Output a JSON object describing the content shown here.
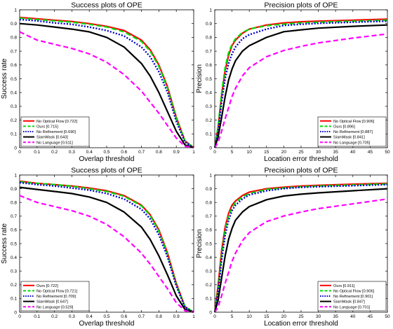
{
  "chart_data": [
    {
      "type": "line",
      "title": "Success plots of OPE",
      "xlabel": "Overlap threshold",
      "ylabel": "Success rate",
      "xlim": [
        0,
        1
      ],
      "ylim": [
        0,
        1
      ],
      "xticks": [
        "0",
        "0.1",
        "0.2",
        "0.3",
        "0.4",
        "0.5",
        "0.6",
        "0.7",
        "0.8",
        "0.9",
        "1"
      ],
      "yticks": [
        "0",
        "0.1",
        "0.2",
        "0.3",
        "0.4",
        "0.5",
        "0.6",
        "0.7",
        "0.8",
        "0.9",
        "1"
      ],
      "legend_position": "bottom-left",
      "grid": false,
      "x": [
        0,
        0.1,
        0.2,
        0.3,
        0.4,
        0.5,
        0.6,
        0.7,
        0.75,
        0.8,
        0.85,
        0.9,
        0.95,
        1
      ],
      "series": [
        {
          "name": "No Optical Flow [0.722]",
          "color": "#ff0000",
          "dash": "solid",
          "values": [
            0.945,
            0.935,
            0.925,
            0.915,
            0.9,
            0.88,
            0.85,
            0.78,
            0.71,
            0.6,
            0.44,
            0.22,
            0.05,
            0.0
          ]
        },
        {
          "name": "Ours [0.715]",
          "color": "#00dd00",
          "dash": "dashed",
          "values": [
            0.94,
            0.93,
            0.92,
            0.91,
            0.895,
            0.875,
            0.84,
            0.77,
            0.7,
            0.59,
            0.43,
            0.21,
            0.05,
            0.0
          ]
        },
        {
          "name": "No Refinement [0.690]",
          "color": "#0000cc",
          "dash": "dotted",
          "values": [
            0.93,
            0.92,
            0.905,
            0.895,
            0.875,
            0.85,
            0.81,
            0.73,
            0.66,
            0.55,
            0.4,
            0.19,
            0.04,
            0.0
          ]
        },
        {
          "name": "SiamMask [0.643]",
          "color": "#000000",
          "dash": "solid",
          "values": [
            0.9,
            0.89,
            0.875,
            0.86,
            0.84,
            0.8,
            0.73,
            0.61,
            0.52,
            0.4,
            0.26,
            0.12,
            0.02,
            0.0
          ]
        },
        {
          "name": "No Language [0.511]",
          "color": "#ff00ff",
          "dash": "dashed",
          "values": [
            0.84,
            0.78,
            0.75,
            0.72,
            0.68,
            0.62,
            0.53,
            0.41,
            0.33,
            0.25,
            0.16,
            0.07,
            0.01,
            0.0
          ]
        }
      ]
    },
    {
      "type": "line",
      "title": "Precision plots of OPE",
      "xlabel": "Location error threshold",
      "ylabel": "Precision",
      "xlim": [
        0,
        50
      ],
      "ylim": [
        0,
        1
      ],
      "xticks": [
        "0",
        "5",
        "10",
        "15",
        "20",
        "25",
        "30",
        "35",
        "40",
        "45",
        "50"
      ],
      "yticks": [
        "0",
        "0.1",
        "0.2",
        "0.3",
        "0.4",
        "0.5",
        "0.6",
        "0.7",
        "0.8",
        "0.9",
        "1"
      ],
      "legend_position": "bottom-right",
      "grid": false,
      "x": [
        0,
        1,
        2,
        3,
        4,
        5,
        6,
        8,
        10,
        15,
        20,
        25,
        30,
        40,
        50
      ],
      "series": [
        {
          "name": "No Optical Flow [0.906]",
          "color": "#ff0000",
          "dash": "solid",
          "values": [
            0.0,
            0.15,
            0.38,
            0.56,
            0.67,
            0.74,
            0.78,
            0.83,
            0.86,
            0.89,
            0.905,
            0.913,
            0.918,
            0.925,
            0.932
          ]
        },
        {
          "name": "Ours [0.896]",
          "color": "#00dd00",
          "dash": "dashed",
          "values": [
            0.0,
            0.16,
            0.4,
            0.58,
            0.69,
            0.75,
            0.79,
            0.835,
            0.86,
            0.885,
            0.896,
            0.905,
            0.91,
            0.918,
            0.925
          ]
        },
        {
          "name": "No Refinement [0.887]",
          "color": "#0000cc",
          "dash": "dotted",
          "values": [
            0.0,
            0.12,
            0.33,
            0.5,
            0.61,
            0.68,
            0.73,
            0.79,
            0.82,
            0.86,
            0.887,
            0.895,
            0.902,
            0.91,
            0.918
          ]
        },
        {
          "name": "SiamMask [0.841]",
          "color": "#000000",
          "dash": "solid",
          "values": [
            0.0,
            0.08,
            0.22,
            0.37,
            0.49,
            0.57,
            0.63,
            0.7,
            0.74,
            0.8,
            0.841,
            0.855,
            0.867,
            0.88,
            0.89
          ]
        },
        {
          "name": "No Language [0.705]",
          "color": "#ff00ff",
          "dash": "dashed",
          "values": [
            0.0,
            0.04,
            0.12,
            0.21,
            0.29,
            0.37,
            0.43,
            0.52,
            0.58,
            0.66,
            0.705,
            0.735,
            0.76,
            0.795,
            0.825
          ]
        }
      ]
    },
    {
      "type": "line",
      "title": "Success plots of OPE",
      "xlabel": "Overlap threshold",
      "ylabel": "Success rate",
      "xlim": [
        0,
        1
      ],
      "ylim": [
        0,
        1
      ],
      "xticks": [
        "0",
        "0.1",
        "0.2",
        "0.3",
        "0.4",
        "0.5",
        "0.6",
        "0.7",
        "0.8",
        "0.9",
        "1"
      ],
      "yticks": [
        "0",
        "0.1",
        "0.2",
        "0.3",
        "0.4",
        "0.5",
        "0.6",
        "0.7",
        "0.8",
        "0.9",
        "1"
      ],
      "legend_position": "bottom-left",
      "grid": false,
      "x": [
        0,
        0.1,
        0.2,
        0.3,
        0.4,
        0.5,
        0.6,
        0.7,
        0.75,
        0.8,
        0.85,
        0.9,
        0.95,
        1
      ],
      "series": [
        {
          "name": "Ours [0.722]",
          "color": "#ff0000",
          "dash": "solid",
          "values": [
            0.955,
            0.94,
            0.93,
            0.92,
            0.905,
            0.885,
            0.85,
            0.78,
            0.71,
            0.6,
            0.43,
            0.21,
            0.04,
            0.0
          ]
        },
        {
          "name": "No Optical Flow [0.721]",
          "color": "#00dd00",
          "dash": "dashed",
          "values": [
            0.95,
            0.94,
            0.93,
            0.918,
            0.9,
            0.88,
            0.845,
            0.775,
            0.705,
            0.59,
            0.42,
            0.2,
            0.04,
            0.0
          ]
        },
        {
          "name": "No Refinement [0.709]",
          "color": "#0000cc",
          "dash": "dotted",
          "values": [
            0.945,
            0.93,
            0.92,
            0.905,
            0.89,
            0.865,
            0.825,
            0.75,
            0.68,
            0.565,
            0.4,
            0.19,
            0.035,
            0.0
          ]
        },
        {
          "name": "SiamMask [0.647]",
          "color": "#000000",
          "dash": "solid",
          "values": [
            0.91,
            0.895,
            0.88,
            0.865,
            0.84,
            0.8,
            0.73,
            0.62,
            0.53,
            0.41,
            0.27,
            0.12,
            0.02,
            0.0
          ]
        },
        {
          "name": "No Language [0.529]",
          "color": "#ff00ff",
          "dash": "dashed",
          "values": [
            0.85,
            0.8,
            0.77,
            0.74,
            0.7,
            0.64,
            0.55,
            0.43,
            0.35,
            0.26,
            0.17,
            0.07,
            0.01,
            0.0
          ]
        }
      ]
    },
    {
      "type": "line",
      "title": "Precision plots of OPE",
      "xlabel": "Location error threshold",
      "ylabel": "Precision",
      "xlim": [
        0,
        50
      ],
      "ylim": [
        0,
        1
      ],
      "xticks": [
        "0",
        "5",
        "10",
        "15",
        "20",
        "25",
        "30",
        "35",
        "40",
        "45",
        "50"
      ],
      "yticks": [
        "0",
        "0.1",
        "0.2",
        "0.3",
        "0.4",
        "0.5",
        "0.6",
        "0.7",
        "0.8",
        "0.9",
        "1"
      ],
      "legend_position": "bottom-right",
      "grid": false,
      "x": [
        0,
        1,
        2,
        3,
        4,
        5,
        6,
        8,
        10,
        15,
        20,
        25,
        30,
        40,
        50
      ],
      "series": [
        {
          "name": "Ours [0.911]",
          "color": "#ff0000",
          "dash": "solid",
          "values": [
            0.0,
            0.2,
            0.45,
            0.62,
            0.72,
            0.78,
            0.81,
            0.85,
            0.875,
            0.9,
            0.911,
            0.92,
            0.925,
            0.933,
            0.94
          ]
        },
        {
          "name": "No Optical Flow [0.906]",
          "color": "#00dd00",
          "dash": "dashed",
          "values": [
            0.0,
            0.17,
            0.42,
            0.6,
            0.7,
            0.76,
            0.8,
            0.84,
            0.865,
            0.895,
            0.906,
            0.915,
            0.92,
            0.928,
            0.935
          ]
        },
        {
          "name": "No Refinement [0.901]",
          "color": "#0000cc",
          "dash": "dotted",
          "values": [
            0.0,
            0.15,
            0.38,
            0.56,
            0.67,
            0.74,
            0.78,
            0.825,
            0.855,
            0.885,
            0.901,
            0.91,
            0.915,
            0.922,
            0.93
          ]
        },
        {
          "name": "SiamMask [0.847]",
          "color": "#000000",
          "dash": "solid",
          "values": [
            0.0,
            0.09,
            0.25,
            0.41,
            0.53,
            0.61,
            0.67,
            0.73,
            0.77,
            0.82,
            0.847,
            0.86,
            0.87,
            0.885,
            0.9
          ]
        },
        {
          "name": "No Language [0.701]",
          "color": "#ff00ff",
          "dash": "dashed",
          "values": [
            0.0,
            0.04,
            0.12,
            0.21,
            0.29,
            0.37,
            0.43,
            0.52,
            0.58,
            0.66,
            0.701,
            0.73,
            0.755,
            0.79,
            0.825
          ]
        }
      ]
    }
  ]
}
